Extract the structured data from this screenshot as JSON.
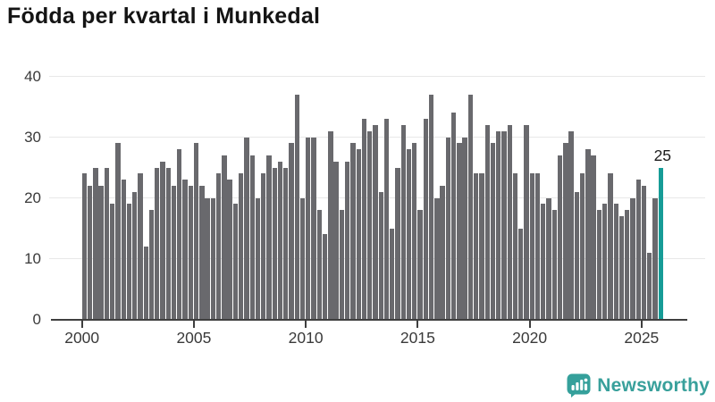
{
  "title": "Födda per kvartal i Munkedal",
  "chart_data": {
    "type": "bar",
    "title": "Födda per kvartal i Munkedal",
    "xlabel": "",
    "ylabel": "",
    "ylim": [
      0,
      40
    ],
    "y_ticks": [
      0,
      10,
      20,
      30,
      40
    ],
    "x_tick_years": [
      "2000",
      "2005",
      "2010",
      "2015",
      "2020",
      "2025"
    ],
    "grid": "horizontal",
    "legend": "none",
    "highlight_last_bar": true,
    "highlight_label": "25",
    "series_by_year": [
      {
        "year": "2000",
        "values": [
          24,
          22,
          25,
          22
        ]
      },
      {
        "year": "2001",
        "values": [
          25,
          19,
          29,
          23
        ]
      },
      {
        "year": "2002",
        "values": [
          19,
          21,
          24,
          12
        ]
      },
      {
        "year": "2003",
        "values": [
          18,
          25,
          26,
          25
        ]
      },
      {
        "year": "2004",
        "values": [
          22,
          28,
          23,
          22
        ]
      },
      {
        "year": "2005",
        "values": [
          29,
          22,
          20,
          20
        ]
      },
      {
        "year": "2006",
        "values": [
          24,
          27,
          23,
          19
        ]
      },
      {
        "year": "2007",
        "values": [
          24,
          30,
          27,
          20
        ]
      },
      {
        "year": "2008",
        "values": [
          24,
          27,
          25,
          26
        ]
      },
      {
        "year": "2009",
        "values": [
          25,
          29,
          37,
          20
        ]
      },
      {
        "year": "2010",
        "values": [
          30,
          30,
          18,
          14
        ]
      },
      {
        "year": "2011",
        "values": [
          31,
          26,
          18,
          26
        ]
      },
      {
        "year": "2012",
        "values": [
          29,
          28,
          33,
          31
        ]
      },
      {
        "year": "2013",
        "values": [
          32,
          21,
          33,
          15
        ]
      },
      {
        "year": "2014",
        "values": [
          25,
          32,
          28,
          29
        ]
      },
      {
        "year": "2015",
        "values": [
          18,
          33,
          37,
          20
        ]
      },
      {
        "year": "2016",
        "values": [
          22,
          30,
          34,
          29
        ]
      },
      {
        "year": "2017",
        "values": [
          30,
          37,
          24,
          24
        ]
      },
      {
        "year": "2018",
        "values": [
          32,
          29,
          31,
          31
        ]
      },
      {
        "year": "2019",
        "values": [
          32,
          24,
          15,
          32
        ]
      },
      {
        "year": "2020",
        "values": [
          24,
          24,
          19,
          20
        ]
      },
      {
        "year": "2021",
        "values": [
          18,
          27,
          29,
          31
        ]
      },
      {
        "year": "2022",
        "values": [
          21,
          24,
          28,
          27
        ]
      },
      {
        "year": "2023",
        "values": [
          18,
          19,
          24,
          19
        ]
      },
      {
        "year": "2024",
        "values": [
          17,
          18,
          20,
          23
        ]
      },
      {
        "year": "2025",
        "values": [
          22,
          11,
          20,
          25
        ]
      }
    ]
  },
  "annotation": {
    "label": "25"
  },
  "branding": {
    "logo_text": "Newsworthy"
  },
  "colors": {
    "bar": "#69696d",
    "bar_highlight": "#179c97",
    "grid": "#e8e8e8",
    "axis": "#3f3f3f",
    "tick_text": "#3a3a3a",
    "title_text": "#141414",
    "logo": "#38a09b"
  }
}
